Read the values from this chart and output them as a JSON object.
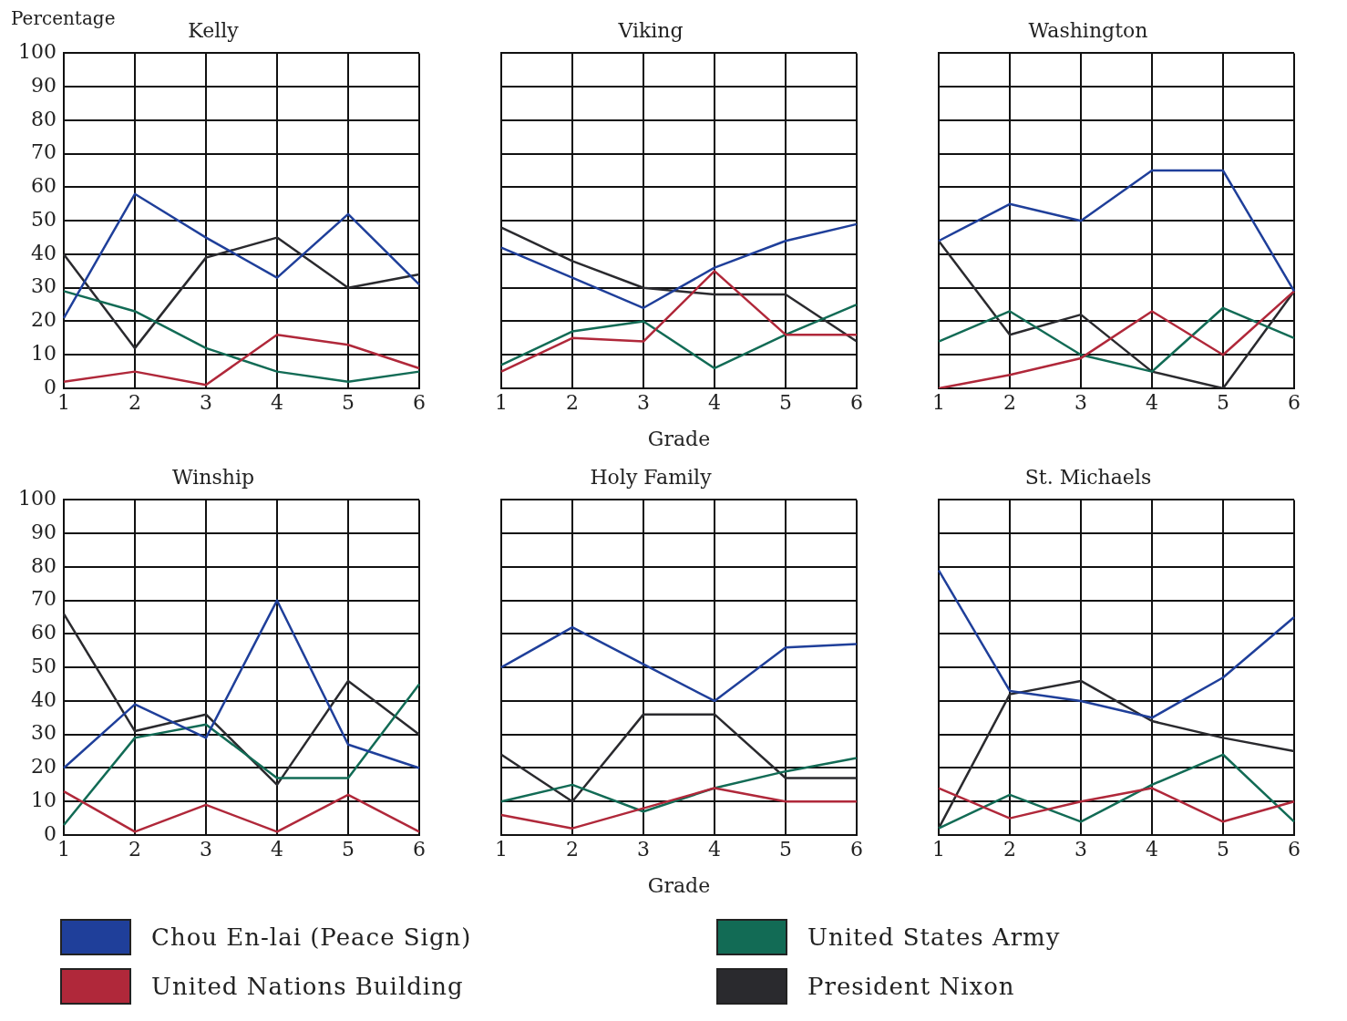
{
  "chart_data": [
    {
      "type": "line",
      "title": "Kelly",
      "ylabel": "Percentage",
      "categories": [
        "1",
        "2",
        "3",
        "4",
        "5",
        "6"
      ],
      "ylim": [
        0,
        100
      ],
      "yticks": [
        0,
        10,
        20,
        30,
        40,
        50,
        60,
        70,
        80,
        90,
        100
      ],
      "grid": true,
      "legend": "bottom",
      "series": [
        {
          "name": "Chou En-lai (Peace Sign)",
          "color": "#1f3f9a",
          "values": [
            21,
            58,
            45,
            33,
            52,
            31
          ]
        },
        {
          "name": "United Nations Building",
          "color": "#b0283a",
          "values": [
            2,
            5,
            1,
            16,
            13,
            6
          ]
        },
        {
          "name": "United States Army",
          "color": "#126b55",
          "values": [
            29,
            23,
            12,
            5,
            2,
            5
          ]
        },
        {
          "name": "President Nixon",
          "color": "#2a2a2e",
          "values": [
            40,
            12,
            39,
            45,
            30,
            34
          ]
        }
      ]
    },
    {
      "type": "line",
      "title": "Viking",
      "xlabel": "Grade",
      "categories": [
        "1",
        "2",
        "3",
        "4",
        "5",
        "6"
      ],
      "ylim": [
        0,
        100
      ],
      "yticks": [
        0,
        10,
        20,
        30,
        40,
        50,
        60,
        70,
        80,
        90,
        100
      ],
      "grid": true,
      "tick_labels": "x",
      "series": [
        {
          "color": "#1f3f9a",
          "values": [
            42,
            33,
            24,
            36,
            44,
            49
          ]
        },
        {
          "color": "#b0283a",
          "values": [
            5,
            15,
            14,
            35,
            16,
            16
          ]
        },
        {
          "color": "#126b55",
          "values": [
            7,
            17,
            20,
            6,
            16,
            25
          ]
        },
        {
          "color": "#2a2a2e",
          "values": [
            48,
            38,
            30,
            28,
            28,
            14
          ]
        }
      ]
    },
    {
      "type": "line",
      "title": "Washington",
      "categories": [
        "1",
        "2",
        "3",
        "4",
        "5",
        "6"
      ],
      "ylim": [
        0,
        100
      ],
      "yticks": [
        0,
        10,
        20,
        30,
        40,
        50,
        60,
        70,
        80,
        90,
        100
      ],
      "grid": true,
      "tick_labels": "x",
      "series": [
        {
          "color": "#1f3f9a",
          "values": [
            44,
            55,
            50,
            65,
            65,
            29
          ]
        },
        {
          "color": "#b0283a",
          "values": [
            0,
            4,
            9,
            23,
            10,
            29
          ]
        },
        {
          "color": "#126b55",
          "values": [
            14,
            23,
            10,
            5,
            24,
            15
          ]
        },
        {
          "color": "#2a2a2e",
          "values": [
            44,
            16,
            22,
            5,
            0,
            29
          ]
        }
      ]
    },
    {
      "type": "line",
      "title": "Winship",
      "categories": [
        "1",
        "2",
        "3",
        "4",
        "5",
        "6"
      ],
      "ylim": [
        0,
        100
      ],
      "yticks": [
        0,
        10,
        20,
        30,
        40,
        50,
        60,
        70,
        80,
        90,
        100
      ],
      "grid": true,
      "series": [
        {
          "color": "#1f3f9a",
          "values": [
            20,
            39,
            29,
            70,
            27,
            20
          ]
        },
        {
          "color": "#b0283a",
          "values": [
            13,
            1,
            9,
            1,
            12,
            1
          ]
        },
        {
          "color": "#126b55",
          "values": [
            3,
            29,
            33,
            17,
            17,
            45
          ]
        },
        {
          "color": "#2a2a2e",
          "values": [
            66,
            31,
            36,
            15,
            46,
            30
          ]
        }
      ]
    },
    {
      "type": "line",
      "title": "Holy Family",
      "xlabel": "Grade",
      "categories": [
        "1",
        "2",
        "3",
        "4",
        "5",
        "6"
      ],
      "ylim": [
        0,
        100
      ],
      "yticks": [
        0,
        10,
        20,
        30,
        40,
        50,
        60,
        70,
        80,
        90,
        100
      ],
      "grid": true,
      "tick_labels": "x",
      "series": [
        {
          "color": "#1f3f9a",
          "values": [
            50,
            62,
            51,
            40,
            56,
            57
          ]
        },
        {
          "color": "#b0283a",
          "values": [
            6,
            2,
            8,
            14,
            10,
            10
          ]
        },
        {
          "color": "#126b55",
          "values": [
            10,
            15,
            7,
            14,
            19,
            23
          ]
        },
        {
          "color": "#2a2a2e",
          "values": [
            24,
            10,
            36,
            36,
            17,
            17
          ]
        }
      ]
    },
    {
      "type": "line",
      "title": "St. Michaels",
      "categories": [
        "1",
        "2",
        "3",
        "4",
        "5",
        "6"
      ],
      "ylim": [
        0,
        100
      ],
      "yticks": [
        0,
        10,
        20,
        30,
        40,
        50,
        60,
        70,
        80,
        90,
        100
      ],
      "grid": true,
      "tick_labels": "x",
      "series": [
        {
          "color": "#1f3f9a",
          "values": [
            79,
            43,
            40,
            35,
            47,
            65
          ]
        },
        {
          "color": "#b0283a",
          "values": [
            14,
            5,
            10,
            14,
            4,
            10
          ]
        },
        {
          "color": "#126b55",
          "values": [
            2,
            12,
            4,
            15,
            24,
            4
          ]
        },
        {
          "color": "#2a2a2e",
          "values": [
            2,
            42,
            46,
            34,
            29,
            25
          ]
        }
      ]
    }
  ]
}
